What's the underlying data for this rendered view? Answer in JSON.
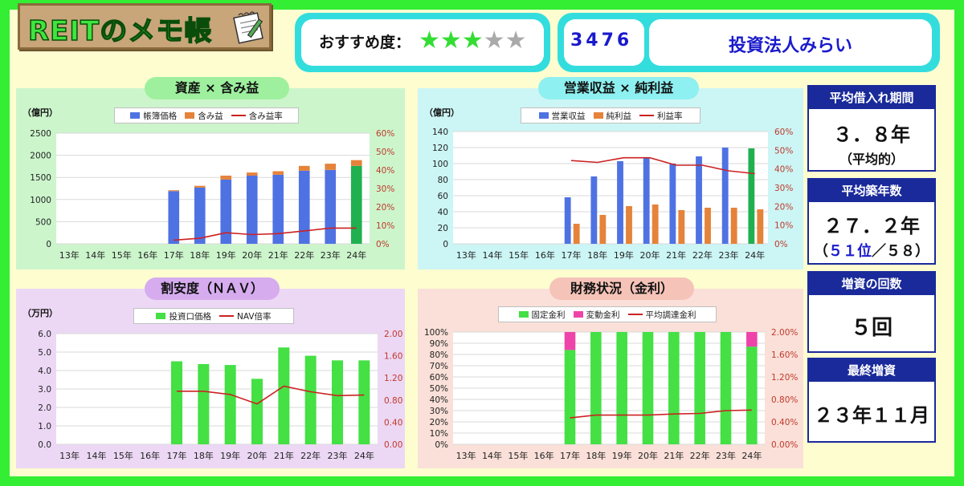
{
  "header": {
    "logo_title": "REITのメモ帳",
    "recommend_label": "おすすめ度：",
    "stars_filled": 3,
    "stars_total": 5,
    "code": "3476",
    "name": "投資法人みらい"
  },
  "colors": {
    "blue": "#4f72e3",
    "orange": "#e5833a",
    "red_line": "#cc2222",
    "green_bar": "#44e044",
    "dark_green": "#20b050",
    "pink": "#ee44aa",
    "axis_red": "#c0392b"
  },
  "chart_data": [
    {
      "id": "assets",
      "type": "bar",
      "title": "資産 × 含み益",
      "unit": "（億円）",
      "categories": [
        "13年",
        "14年",
        "15年",
        "16年",
        "17年",
        "18年",
        "19年",
        "20年",
        "21年",
        "22年",
        "23年",
        "24年"
      ],
      "series": [
        {
          "name": "帳簿価格",
          "type": "bar",
          "stack": true,
          "axis": "left",
          "values": [
            null,
            null,
            null,
            null,
            1190,
            1270,
            1450,
            1540,
            1560,
            1650,
            1670,
            1760
          ]
        },
        {
          "name": "含み益",
          "type": "bar",
          "stack": true,
          "axis": "left",
          "values": [
            null,
            null,
            null,
            null,
            20,
            40,
            90,
            70,
            80,
            110,
            140,
            130
          ]
        },
        {
          "name": "含み益率",
          "type": "line",
          "axis": "right",
          "values": [
            null,
            null,
            null,
            null,
            0.02,
            0.03,
            0.06,
            0.05,
            0.055,
            0.07,
            0.085,
            0.085
          ]
        }
      ],
      "left_ticks": [
        "0",
        "500",
        "1000",
        "1500",
        "2000",
        "2500"
      ],
      "left_range": [
        0,
        2500
      ],
      "right_ticks": [
        "0%",
        "10%",
        "20%",
        "30%",
        "40%",
        "50%",
        "60%"
      ],
      "right_range": [
        0,
        0.6
      ],
      "highlight_last": true
    },
    {
      "id": "income",
      "type": "bar",
      "title": "営業収益 × 純利益",
      "unit": "（億円）",
      "categories": [
        "13年",
        "14年",
        "15年",
        "16年",
        "17年",
        "18年",
        "19年",
        "20年",
        "21年",
        "22年",
        "23年",
        "24年"
      ],
      "series": [
        {
          "name": "営業収益",
          "type": "bar",
          "axis": "left",
          "values": [
            null,
            null,
            null,
            null,
            58,
            84,
            103,
            107,
            100,
            109,
            120,
            119
          ]
        },
        {
          "name": "純利益",
          "type": "bar",
          "axis": "left",
          "values": [
            null,
            null,
            null,
            null,
            25,
            36,
            47,
            49,
            42,
            45,
            45,
            43
          ]
        },
        {
          "name": "利益率",
          "type": "line",
          "axis": "right",
          "values": [
            null,
            null,
            null,
            null,
            0.445,
            0.435,
            0.46,
            0.46,
            0.42,
            0.42,
            0.39,
            0.375
          ]
        }
      ],
      "left_ticks": [
        "0",
        "20",
        "40",
        "60",
        "80",
        "100",
        "120",
        "140"
      ],
      "left_range": [
        0,
        140
      ],
      "right_ticks": [
        "0%",
        "10%",
        "20%",
        "30%",
        "40%",
        "50%",
        "60%"
      ],
      "right_range": [
        0,
        0.6
      ],
      "highlight_last": true
    },
    {
      "id": "nav",
      "type": "bar",
      "title": "割安度（ＮＡＶ）",
      "unit": "（万円）",
      "categories": [
        "13年",
        "14年",
        "15年",
        "16年",
        "17年",
        "18年",
        "19年",
        "20年",
        "21年",
        "22年",
        "23年",
        "24年"
      ],
      "series": [
        {
          "name": "投資口価格",
          "type": "bar",
          "axis": "left",
          "values": [
            null,
            null,
            null,
            null,
            4.5,
            4.35,
            4.3,
            3.55,
            5.25,
            4.8,
            4.55,
            4.55
          ]
        },
        {
          "name": "NAV倍率",
          "type": "line",
          "axis": "right",
          "values": [
            null,
            null,
            null,
            null,
            0.96,
            0.96,
            0.9,
            0.73,
            1.05,
            0.95,
            0.88,
            0.89
          ]
        }
      ],
      "left_ticks": [
        "0.0",
        "1.0",
        "2.0",
        "3.0",
        "4.0",
        "5.0",
        "6.0"
      ],
      "left_range": [
        0,
        6
      ],
      "right_ticks": [
        "0.00",
        "0.40",
        "0.80",
        "1.20",
        "1.60",
        "2.00"
      ],
      "right_range": [
        0,
        2.0
      ],
      "highlight_last": false
    },
    {
      "id": "finance",
      "type": "bar",
      "title": "財務状況（金利）",
      "unit": "",
      "categories": [
        "13年",
        "14年",
        "15年",
        "16年",
        "17年",
        "18年",
        "19年",
        "20年",
        "21年",
        "22年",
        "23年",
        "24年"
      ],
      "series": [
        {
          "name": "固定金利",
          "type": "bar",
          "stack": true,
          "axis": "left",
          "values": [
            null,
            null,
            null,
            null,
            0.84,
            1.0,
            1.0,
            1.0,
            1.0,
            1.0,
            1.0,
            0.87
          ]
        },
        {
          "name": "変動金利",
          "type": "bar",
          "stack": true,
          "axis": "left",
          "values": [
            null,
            null,
            null,
            null,
            0.16,
            0,
            0,
            0,
            0,
            0,
            0,
            0.13
          ]
        },
        {
          "name": "平均調達金利",
          "type": "line",
          "axis": "right",
          "values": [
            null,
            null,
            null,
            null,
            0.0047,
            0.0052,
            0.0052,
            0.0052,
            0.0054,
            0.0055,
            0.006,
            0.0061
          ]
        }
      ],
      "left_ticks": [
        "0%",
        "10%",
        "20%",
        "30%",
        "40%",
        "50%",
        "60%",
        "70%",
        "80%",
        "90%",
        "100%"
      ],
      "left_range": [
        0,
        1
      ],
      "right_ticks": [
        "0.00%",
        "0.40%",
        "0.80%",
        "1.20%",
        "1.60%",
        "2.00%"
      ],
      "right_range": [
        0,
        0.02
      ],
      "highlight_last": false
    }
  ],
  "side": [
    {
      "label": "平均借入れ期間",
      "value": "３．８年",
      "sub": "（平均的）"
    },
    {
      "label": "平均築年数",
      "value": "２７．２年",
      "sub_prefix": "（",
      "sub_rank": "５１位",
      "sub_suffix": "／５８）"
    },
    {
      "label": "増資の回数",
      "value": "５回"
    },
    {
      "label": "最終増資",
      "value": "２３年１１月"
    }
  ]
}
